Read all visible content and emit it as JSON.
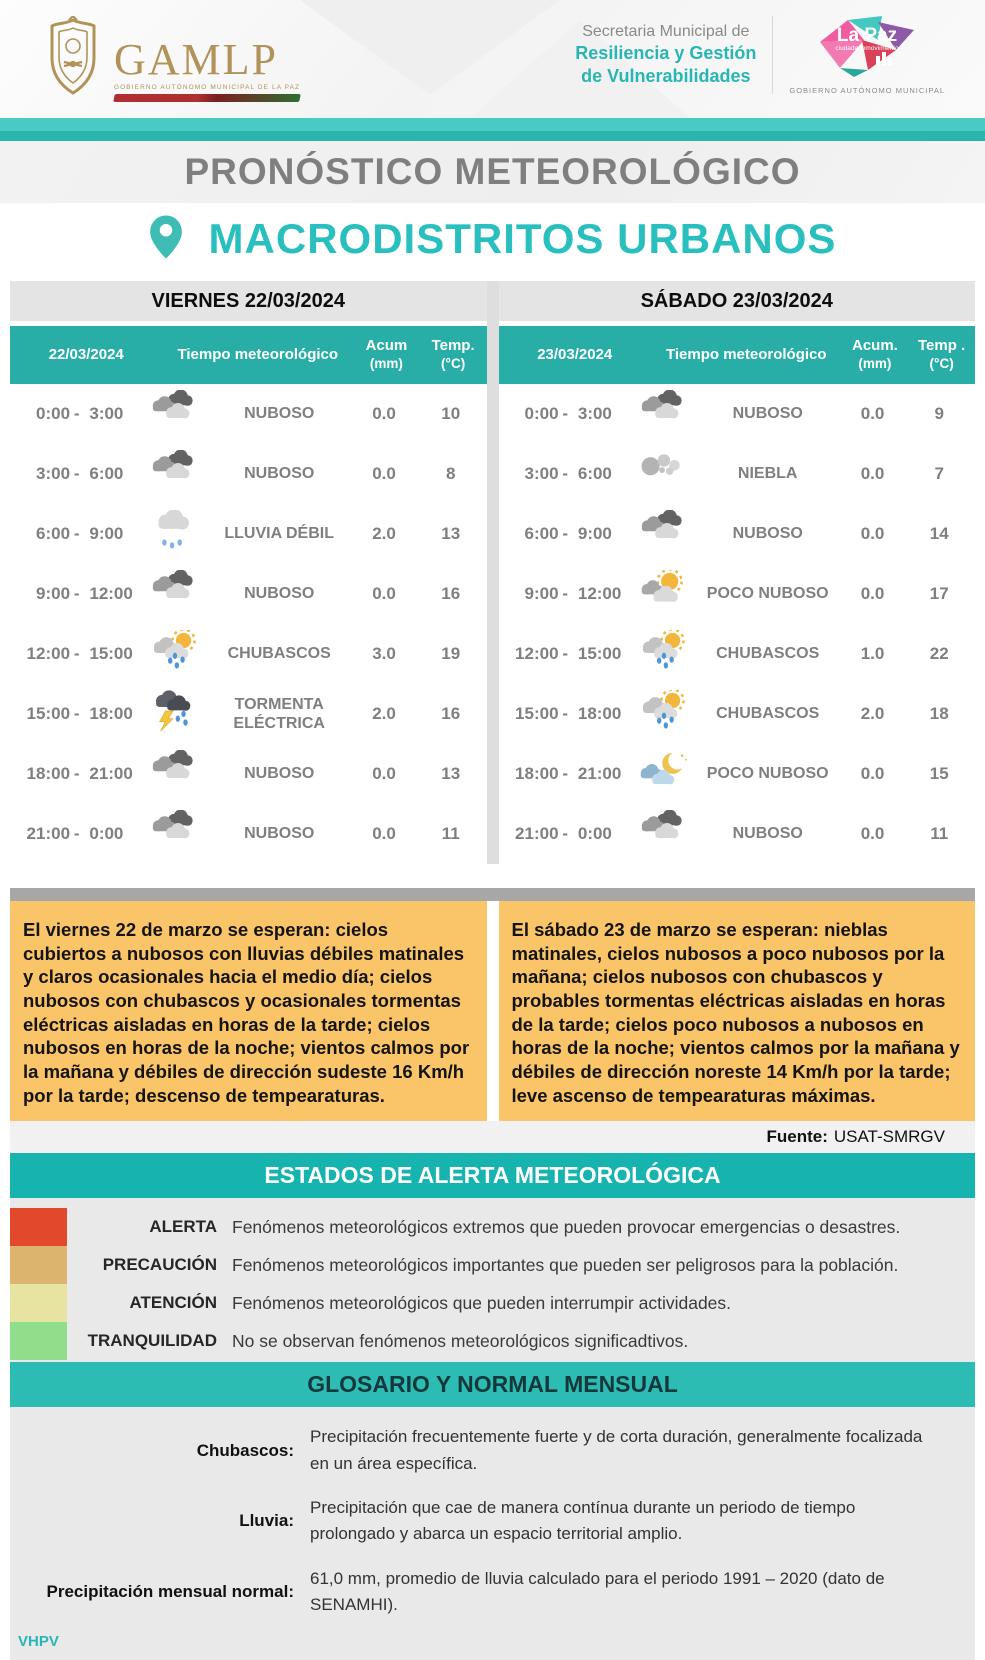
{
  "header": {
    "gamlp": {
      "acronym": "GAMLP",
      "caption": "GOBIERNO AUTÓNOMO MUNICIPAL DE LA PAZ"
    },
    "secretaria": {
      "line1": "Secretaria Municipal de",
      "line2": "Resiliencia y Gestión",
      "line3": "de Vulnerabilidades"
    },
    "lapaz": {
      "name": "La Paz",
      "tagline": "ciudadanomovimiento",
      "caption": "GOBIERNO AUTÓNOMO MUNICIPAL"
    }
  },
  "title": "PRONÓSTICO METEOROLÓGICO",
  "subtitle": "MACRODISTRITOS URBANOS",
  "days": [
    {
      "day_label": "VIERNES 22/03/2024",
      "columns": {
        "date": "22/03/2024",
        "weather": "Tiempo meteorológico",
        "acum1": "Acum",
        "acum2": "(mm)",
        "temp1": "Temp.",
        "temp2": "(°C)"
      },
      "rows": [
        {
          "start": "0:00",
          "dash": "-",
          "end": "3:00",
          "icon": "nuboso",
          "condition": "NUBOSO",
          "acum": "0.0",
          "temp": "10"
        },
        {
          "start": "3:00",
          "dash": "-",
          "end": "6:00",
          "icon": "nuboso",
          "condition": "NUBOSO",
          "acum": "0.0",
          "temp": "8"
        },
        {
          "start": "6:00",
          "dash": "-",
          "end": "9:00",
          "icon": "lluvia_debil",
          "condition": "LLUVIA DÉBIL",
          "acum": "2.0",
          "temp": "13"
        },
        {
          "start": "9:00",
          "dash": "-",
          "end": "12:00",
          "icon": "nuboso",
          "condition": "NUBOSO",
          "acum": "0.0",
          "temp": "16"
        },
        {
          "start": "12:00",
          "dash": "-",
          "end": "15:00",
          "icon": "chubascos",
          "condition": "CHUBASCOS",
          "acum": "3.0",
          "temp": "19"
        },
        {
          "start": "15:00",
          "dash": "-",
          "end": "18:00",
          "icon": "tormenta_electrica",
          "condition": "TORMENTA ELÉCTRICA",
          "acum": "2.0",
          "temp": "16"
        },
        {
          "start": "18:00",
          "dash": "-",
          "end": "21:00",
          "icon": "nuboso",
          "condition": "NUBOSO",
          "acum": "0.0",
          "temp": "13"
        },
        {
          "start": "21:00",
          "dash": "-",
          "end": "0:00",
          "icon": "nuboso",
          "condition": "NUBOSO",
          "acum": "0.0",
          "temp": "11"
        }
      ]
    },
    {
      "day_label": "SÁBADO 23/03/2024",
      "columns": {
        "date": "23/03/2024",
        "weather": "Tiempo meteorológico",
        "acum1": "Acum.",
        "acum2": "(mm)",
        "temp1": "Temp .",
        "temp2": "(°C)"
      },
      "rows": [
        {
          "start": "0:00",
          "dash": "-",
          "end": "3:00",
          "icon": "nuboso",
          "condition": "NUBOSO",
          "acum": "0.0",
          "temp": "9"
        },
        {
          "start": "3:00",
          "dash": "-",
          "end": "6:00",
          "icon": "niebla",
          "condition": "NIEBLA",
          "acum": "0.0",
          "temp": "7"
        },
        {
          "start": "6:00",
          "dash": "-",
          "end": "9:00",
          "icon": "nuboso",
          "condition": "NUBOSO",
          "acum": "0.0",
          "temp": "14"
        },
        {
          "start": "9:00",
          "dash": "-",
          "end": "12:00",
          "icon": "poco_nuboso_dia",
          "condition": "POCO NUBOSO",
          "acum": "0.0",
          "temp": "17"
        },
        {
          "start": "12:00",
          "dash": "-",
          "end": "15:00",
          "icon": "chubascos",
          "condition": "CHUBASCOS",
          "acum": "1.0",
          "temp": "22"
        },
        {
          "start": "15:00",
          "dash": "-",
          "end": "18:00",
          "icon": "chubascos",
          "condition": "CHUBASCOS",
          "acum": "2.0",
          "temp": "18"
        },
        {
          "start": "18:00",
          "dash": "-",
          "end": "21:00",
          "icon": "poco_nuboso_noche",
          "condition": "POCO NUBOSO",
          "acum": "0.0",
          "temp": "15"
        },
        {
          "start": "21:00",
          "dash": "-",
          "end": "0:00",
          "icon": "nuboso",
          "condition": "NUBOSO",
          "acum": "0.0",
          "temp": "11"
        }
      ]
    }
  ],
  "summaries": [
    {
      "text": "El viernes 22 de marzo se esperan: cielos cubiertos a nubosos con lluvias débiles matinales y claros ocasionales hacia el medio día; cielos nubosos con chubascos y ocasionales tormentas eléctricas aisladas en horas de la tarde; cielos nubosos en horas de la noche; vientos calmos por la mañana y débiles de dirección sudeste 16 Km/h por la tarde; descenso de tempearaturas."
    },
    {
      "text": "El sábado 23 de marzo se esperan: nieblas matinales, cielos nubosos a poco nubosos por la mañana; cielos nubosos con chubascos y probables tormentas eléctricas aisladas en horas de la tarde; cielos poco nubosos a nubosos en horas de la noche; vientos calmos por la mañana y débiles de dirección noreste 14 Km/h por la tarde; leve ascenso de tempearaturas máximas."
    }
  ],
  "source": {
    "label": "Fuente:",
    "value": "USAT-SMRGV"
  },
  "alert_section": {
    "title": "ESTADOS DE ALERTA METEOROLÓGICA",
    "levels": [
      {
        "name": "ALERTA",
        "color": "#e2492c",
        "description": "Fenómenos meteorológicos extremos que pueden provocar emergencias o desastres."
      },
      {
        "name": "PRECAUCIÓN",
        "color": "#ddb46e",
        "description": "Fenómenos meteorológicos importantes que pueden ser peligrosos para la población."
      },
      {
        "name": "ATENCIÓN",
        "color": "#e6e4a0",
        "description": "Fenómenos meteorológicos que pueden interrumpir actividades."
      },
      {
        "name": "TRANQUILIDAD",
        "color": "#90de8b",
        "description": "No se observan fenómenos meteorológicos significadtivos."
      }
    ]
  },
  "glossary_section": {
    "title": "GLOSARIO Y NORMAL MENSUAL",
    "entries": [
      {
        "term": "Chubascos:",
        "definition": "Precipitación frecuentemente fuerte y de corta duración, generalmente focalizada en un área específica."
      },
      {
        "term": "Lluvia:",
        "definition": "Precipitación que cae de manera contínua durante un periodo de tiempo prolongado y abarca un espacio territorial amplio."
      },
      {
        "term": "Precipitación mensual normal:",
        "definition": "61,0 mm, promedio de lluvia calculado para el periodo 1991 – 2020 (dato de SENAMHI)."
      }
    ]
  },
  "footer": {
    "initials": "VHPV"
  },
  "colors": {
    "accent_teal": "#2ab4ae",
    "table_header_teal": "#29aea7",
    "subtitle_teal": "#29bfbf",
    "highlight_yellow": "#fac468",
    "divider_gray": "#a7a7a7",
    "section_gray": "#e9e9e9"
  }
}
